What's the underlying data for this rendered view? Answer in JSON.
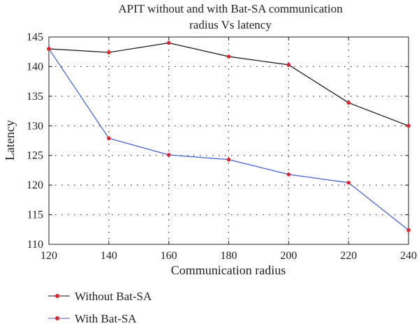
{
  "chart_data": {
    "type": "line",
    "title": "APIT without and with Bat-SA communication radius Vs latency",
    "title_lines": [
      "APIT without and with Bat-SA communication",
      "radius Vs latency"
    ],
    "xlabel": "Communication radius",
    "ylabel": "Latency",
    "x": [
      120,
      140,
      160,
      180,
      200,
      220,
      240
    ],
    "xlim": [
      120,
      240
    ],
    "ylim": [
      110,
      145
    ],
    "xticks": [
      120,
      140,
      160,
      180,
      200,
      220,
      240
    ],
    "yticks": [
      110,
      115,
      120,
      125,
      130,
      135,
      140,
      145
    ],
    "grid": true,
    "legend_position": "bottom-left, below plot",
    "marker_color": "#e8202a",
    "series": [
      {
        "name": "Without Bat-SA",
        "color": "#111111",
        "values": [
          143.0,
          142.4,
          144.0,
          141.7,
          140.3,
          133.9,
          130.0
        ]
      },
      {
        "name": "With Bat-SA",
        "color": "#3a5fcd",
        "values": [
          143.0,
          127.9,
          125.1,
          124.3,
          121.8,
          120.4,
          112.4
        ]
      }
    ]
  }
}
